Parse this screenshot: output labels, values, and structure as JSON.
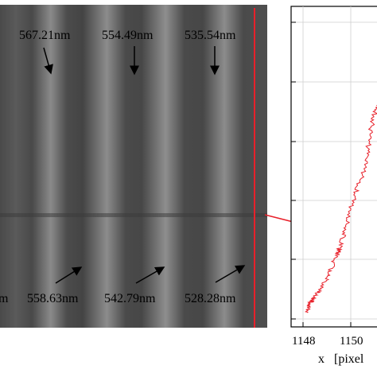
{
  "image_panel": {
    "labels_top": [
      "567.21nm",
      "554.49nm",
      "535.54nm"
    ],
    "labels_bottom": [
      "m",
      "558.63nm",
      "542.79nm",
      "528.28nm"
    ],
    "cut_line_color": "#e8202a"
  },
  "chart_data": {
    "type": "line",
    "x_ticks": [
      "1148",
      "1150"
    ],
    "xlabel": "x   [pixel",
    "line_color": "#e8202a",
    "y_range": [
      0,
      1
    ],
    "x_range": [
      1147.5,
      1151.6
    ],
    "x": [
      1148.2,
      1148.3,
      1148.5,
      1148.9,
      1149.2,
      1149.5,
      1149.6,
      1149.9,
      1150.2,
      1150.6,
      1150.8,
      1151.0,
      1151.3,
      1151.5,
      1151.4,
      1151.5
    ],
    "y": [
      0.02,
      0.05,
      0.07,
      0.11,
      0.16,
      0.21,
      0.23,
      0.3,
      0.39,
      0.47,
      0.55,
      0.64,
      0.7,
      0.73,
      0.68,
      0.62
    ]
  }
}
